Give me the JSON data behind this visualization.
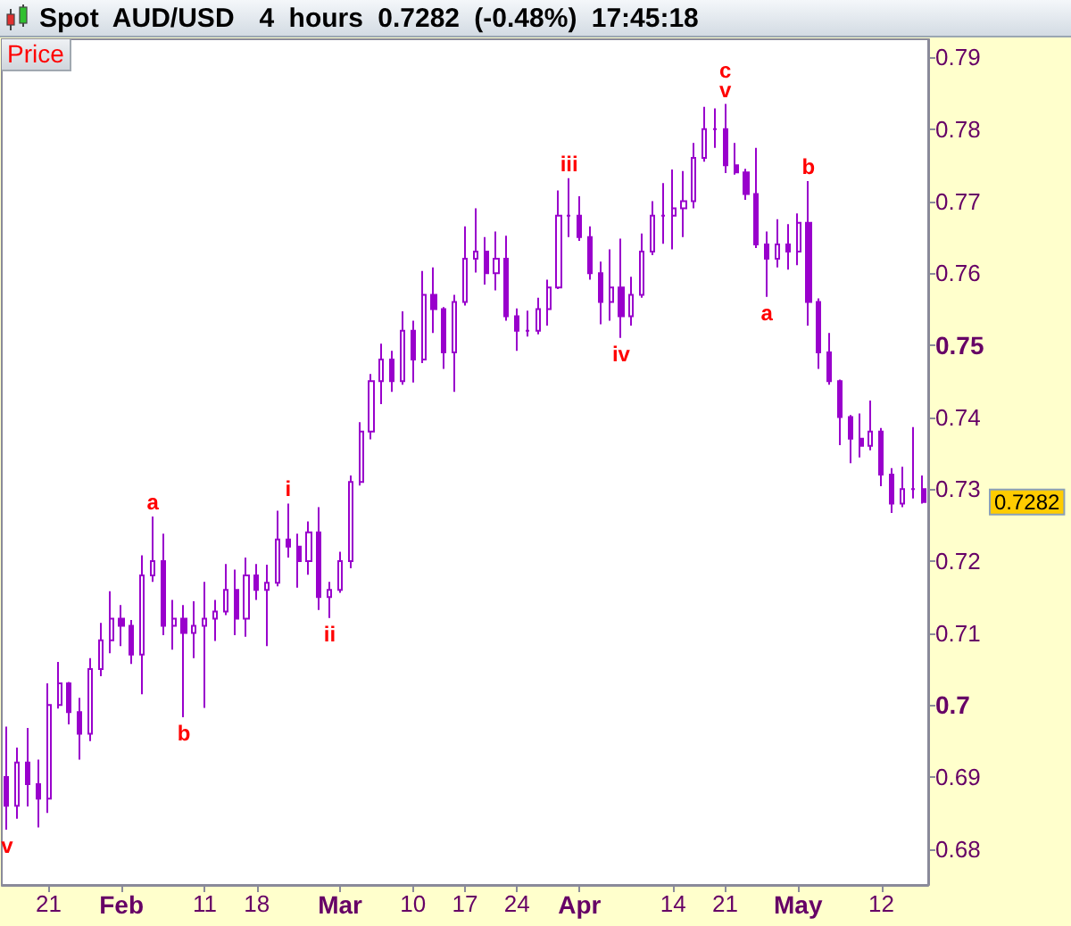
{
  "chart_data": {
    "type": "candlestick",
    "title": "Spot AUD/USD",
    "subtitle": "4 hours 0.7282 (-0.48%) 17:45:18",
    "ylabel": "Price",
    "color": "#9900cc",
    "categories": [
      null,
      null,
      null,
      null,
      "21",
      null,
      null,
      null,
      null,
      null,
      null,
      "Feb",
      null,
      null,
      null,
      null,
      null,
      null,
      null,
      "11",
      null,
      null,
      null,
      null,
      "18",
      null,
      null,
      null,
      null,
      null,
      null,
      null,
      "Mar",
      null,
      null,
      null,
      null,
      null,
      null,
      "10",
      null,
      null,
      null,
      null,
      "17",
      null,
      null,
      null,
      null,
      "24",
      null,
      null,
      null,
      null,
      null,
      "Apr",
      null,
      null,
      null,
      null,
      null,
      null,
      null,
      null,
      "14",
      null,
      null,
      null,
      null,
      "21",
      null,
      null,
      null,
      null,
      null,
      null,
      "May",
      null,
      null,
      null,
      null,
      null,
      null,
      null,
      "12",
      null,
      null,
      null,
      null
    ],
    "ohlc": [
      [
        0.69,
        0.697,
        0.6827,
        0.686
      ],
      [
        0.686,
        0.6941,
        0.6842,
        0.692
      ],
      [
        0.692,
        0.6968,
        0.6859,
        0.689
      ],
      [
        0.689,
        0.6924,
        0.683,
        0.687
      ],
      [
        0.687,
        0.703,
        0.685,
        0.7
      ],
      [
        0.7,
        0.706,
        0.6995,
        0.703
      ],
      [
        0.703,
        0.7032,
        0.6973,
        0.699
      ],
      [
        0.699,
        0.701,
        0.6924,
        0.696
      ],
      [
        0.696,
        0.7065,
        0.695,
        0.705
      ],
      [
        0.705,
        0.7114,
        0.704,
        0.709
      ],
      [
        0.709,
        0.7158,
        0.7072,
        0.712
      ],
      [
        0.712,
        0.7139,
        0.7082,
        0.711
      ],
      [
        0.711,
        0.7118,
        0.7057,
        0.707
      ],
      [
        0.707,
        0.7208,
        0.7015,
        0.718
      ],
      [
        0.718,
        0.7262,
        0.7171,
        0.72
      ],
      [
        0.72,
        0.7238,
        0.7097,
        0.711
      ],
      [
        0.711,
        0.7146,
        0.7077,
        0.712
      ],
      [
        0.712,
        0.7139,
        0.6983,
        0.71
      ],
      [
        0.71,
        0.7144,
        0.7065,
        0.711
      ],
      [
        0.711,
        0.7171,
        0.6996,
        0.712
      ],
      [
        0.712,
        0.7146,
        0.7089,
        0.713
      ],
      [
        0.713,
        0.7196,
        0.7125,
        0.716
      ],
      [
        0.716,
        0.7188,
        0.7097,
        0.712
      ],
      [
        0.712,
        0.7205,
        0.7095,
        0.718
      ],
      [
        0.718,
        0.7196,
        0.7146,
        0.716
      ],
      [
        0.716,
        0.7195,
        0.7082,
        0.717
      ],
      [
        0.717,
        0.727,
        0.7165,
        0.723
      ],
      [
        0.723,
        0.728,
        0.7205,
        0.722
      ],
      [
        0.722,
        0.7238,
        0.7163,
        0.72
      ],
      [
        0.72,
        0.7255,
        0.7181,
        0.724
      ],
      [
        0.724,
        0.7275,
        0.7132,
        0.715
      ],
      [
        0.715,
        0.7171,
        0.7121,
        0.716
      ],
      [
        0.716,
        0.7213,
        0.7156,
        0.72
      ],
      [
        0.72,
        0.7319,
        0.719,
        0.731
      ],
      [
        0.731,
        0.7393,
        0.7305,
        0.738
      ],
      [
        0.738,
        0.746,
        0.7369,
        0.745
      ],
      [
        0.745,
        0.7502,
        0.7418,
        0.748
      ],
      [
        0.748,
        0.7492,
        0.7435,
        0.745
      ],
      [
        0.745,
        0.7547,
        0.7445,
        0.752
      ],
      [
        0.752,
        0.7534,
        0.7448,
        0.748
      ],
      [
        0.748,
        0.7603,
        0.7475,
        0.757
      ],
      [
        0.757,
        0.7608,
        0.7517,
        0.755
      ],
      [
        0.755,
        0.7553,
        0.7467,
        0.749
      ],
      [
        0.749,
        0.757,
        0.7435,
        0.756
      ],
      [
        0.756,
        0.7665,
        0.7555,
        0.762
      ],
      [
        0.762,
        0.769,
        0.7601,
        0.763
      ],
      [
        0.763,
        0.765,
        0.7584,
        0.76
      ],
      [
        0.76,
        0.7658,
        0.7576,
        0.762
      ],
      [
        0.762,
        0.7652,
        0.7534,
        0.754
      ],
      [
        0.754,
        0.7551,
        0.7492,
        0.752
      ],
      [
        0.752,
        0.7548,
        0.7512,
        0.752
      ],
      [
        0.752,
        0.7566,
        0.7515,
        0.755
      ],
      [
        0.755,
        0.7591,
        0.7527,
        0.758
      ],
      [
        0.758,
        0.7715,
        0.7578,
        0.768
      ],
      [
        0.768,
        0.7732,
        0.765,
        0.768
      ],
      [
        0.768,
        0.7707,
        0.7645,
        0.765
      ],
      [
        0.765,
        0.7665,
        0.7591,
        0.76
      ],
      [
        0.76,
        0.7616,
        0.7529,
        0.756
      ],
      [
        0.756,
        0.7633,
        0.7534,
        0.758
      ],
      [
        0.758,
        0.7648,
        0.751,
        0.754
      ],
      [
        0.754,
        0.7595,
        0.7527,
        0.757
      ],
      [
        0.757,
        0.7655,
        0.7566,
        0.763
      ],
      [
        0.763,
        0.77,
        0.7625,
        0.768
      ],
      [
        0.768,
        0.7725,
        0.7641,
        0.768
      ],
      [
        0.768,
        0.7744,
        0.7633,
        0.769
      ],
      [
        0.769,
        0.7742,
        0.765,
        0.77
      ],
      [
        0.77,
        0.7781,
        0.769,
        0.776
      ],
      [
        0.776,
        0.7831,
        0.7755,
        0.78
      ],
      [
        0.78,
        0.7829,
        0.7774,
        0.78
      ],
      [
        0.78,
        0.7835,
        0.7739,
        0.775
      ],
      [
        0.775,
        0.7781,
        0.7737,
        0.774
      ],
      [
        0.774,
        0.7745,
        0.7702,
        0.771
      ],
      [
        0.771,
        0.7774,
        0.7635,
        0.764
      ],
      [
        0.764,
        0.7658,
        0.7567,
        0.762
      ],
      [
        0.762,
        0.7675,
        0.7608,
        0.764
      ],
      [
        0.764,
        0.7668,
        0.7605,
        0.763
      ],
      [
        0.763,
        0.7683,
        0.7611,
        0.767
      ],
      [
        0.767,
        0.7728,
        0.7527,
        0.756
      ],
      [
        0.756,
        0.7565,
        0.7467,
        0.749
      ],
      [
        0.749,
        0.7517,
        0.7445,
        0.745
      ],
      [
        0.745,
        0.7452,
        0.7361,
        0.74
      ],
      [
        0.74,
        0.7403,
        0.7336,
        0.737
      ],
      [
        0.737,
        0.7405,
        0.7344,
        0.736
      ],
      [
        0.736,
        0.7423,
        0.7354,
        0.738
      ],
      [
        0.738,
        0.7385,
        0.7304,
        0.732
      ],
      [
        0.732,
        0.7329,
        0.7267,
        0.728
      ],
      [
        0.728,
        0.7331,
        0.7275,
        0.73
      ],
      [
        0.73,
        0.7386,
        0.7287,
        0.73
      ],
      [
        0.73,
        0.7319,
        0.728,
        0.7282
      ]
    ],
    "ylim": [
      0.675,
      0.7925
    ],
    "yticks": [
      0.68,
      0.69,
      0.7,
      0.71,
      0.72,
      0.73,
      0.74,
      0.75,
      0.76,
      0.77,
      0.78,
      0.79
    ],
    "annotations": [
      {
        "text": "v",
        "y": 0.6827
      },
      {
        "text": "a",
        "y": 0.7262
      },
      {
        "text": "b",
        "y": 0.6983
      },
      {
        "text": "i",
        "y": 0.728
      },
      {
        "text": "ii",
        "y": 0.7121
      },
      {
        "text": "iii",
        "y": 0.7732
      },
      {
        "text": "iv",
        "y": 0.751
      },
      {
        "text": "v",
        "y": 0.7835
      },
      {
        "text": "c",
        "y": 0.7835
      },
      {
        "text": "a",
        "y": 0.7567
      },
      {
        "text": "b",
        "y": 0.7728
      },
      "0.7282"
    ]
  }
}
